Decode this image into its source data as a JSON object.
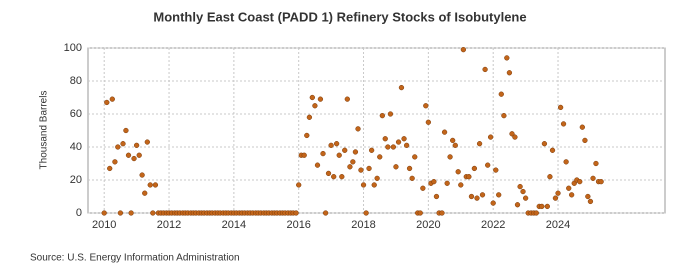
{
  "chart_data": {
    "type": "scatter",
    "title": "Monthly East Coast (PADD 1) Refinery Stocks of Isobutylene",
    "y_label": "Thousand Barrels",
    "source": "Source: U.S. Energy Information Administration",
    "color": "#c2651a",
    "grid": true,
    "xlim": [
      2009.5,
      2027.3
    ],
    "xticks": [
      2010,
      2012,
      2014,
      2016,
      2018,
      2020,
      2022,
      2024
    ],
    "ylim": [
      0,
      100
    ],
    "yticks": [
      0,
      20,
      40,
      60,
      80,
      100
    ],
    "x": [
      2010.0,
      2010.08,
      2010.17,
      2010.25,
      2010.33,
      2010.42,
      2010.5,
      2010.58,
      2010.67,
      2010.75,
      2010.83,
      2010.92,
      2011.0,
      2011.08,
      2011.17,
      2011.25,
      2011.33,
      2011.42,
      2011.5,
      2011.58,
      2011.67,
      2011.75,
      2011.83,
      2011.92,
      2012.0,
      2012.08,
      2012.17,
      2012.25,
      2012.33,
      2012.42,
      2012.5,
      2012.58,
      2012.67,
      2012.75,
      2012.83,
      2012.92,
      2013.0,
      2013.08,
      2013.17,
      2013.25,
      2013.33,
      2013.42,
      2013.5,
      2013.58,
      2013.67,
      2013.75,
      2013.83,
      2013.92,
      2014.0,
      2014.08,
      2014.17,
      2014.25,
      2014.33,
      2014.42,
      2014.5,
      2014.58,
      2014.67,
      2014.75,
      2014.83,
      2014.92,
      2015.0,
      2015.08,
      2015.17,
      2015.25,
      2015.33,
      2015.42,
      2015.5,
      2015.58,
      2015.67,
      2015.75,
      2015.83,
      2015.92,
      2016.0,
      2016.08,
      2016.17,
      2016.25,
      2016.33,
      2016.42,
      2016.5,
      2016.58,
      2016.67,
      2016.75,
      2016.83,
      2016.92,
      2017.0,
      2017.08,
      2017.17,
      2017.25,
      2017.33,
      2017.42,
      2017.5,
      2017.58,
      2017.67,
      2017.75,
      2017.83,
      2017.92,
      2018.0,
      2018.08,
      2018.17,
      2018.25,
      2018.33,
      2018.42,
      2018.5,
      2018.58,
      2018.67,
      2018.75,
      2018.83,
      2018.92,
      2019.0,
      2019.08,
      2019.17,
      2019.25,
      2019.33,
      2019.42,
      2019.5,
      2019.58,
      2019.67,
      2019.75,
      2019.83,
      2019.92,
      2020.0,
      2020.08,
      2020.17,
      2020.25,
      2020.33,
      2020.42,
      2020.5,
      2020.58,
      2020.67,
      2020.75,
      2020.83,
      2020.92,
      2021.0,
      2021.08,
      2021.17,
      2021.25,
      2021.33,
      2021.42,
      2021.5,
      2021.58,
      2021.67,
      2021.75,
      2021.83,
      2021.92,
      2022.0,
      2022.08,
      2022.17,
      2022.25,
      2022.33,
      2022.42,
      2022.5,
      2022.58,
      2022.67,
      2022.75,
      2022.83,
      2022.92,
      2023.0,
      2023.08,
      2023.17,
      2023.25,
      2023.33,
      2023.42,
      2023.5,
      2023.58,
      2023.67,
      2023.75,
      2023.83,
      2023.92,
      2024.0,
      2024.08,
      2024.17,
      2024.25,
      2024.33,
      2024.42,
      2024.5,
      2024.58,
      2024.67,
      2024.75,
      2024.83,
      2024.92,
      2025.0,
      2025.08,
      2025.17,
      2025.25,
      2025.33
    ],
    "values": [
      0,
      67,
      27,
      69,
      31,
      40,
      0,
      42,
      50,
      35,
      0,
      33,
      41,
      35,
      23,
      12,
      43,
      17,
      0,
      17,
      0,
      0,
      0,
      0,
      0,
      0,
      0,
      0,
      0,
      0,
      0,
      0,
      0,
      0,
      0,
      0,
      0,
      0,
      0,
      0,
      0,
      0,
      0,
      0,
      0,
      0,
      0,
      0,
      0,
      0,
      0,
      0,
      0,
      0,
      0,
      0,
      0,
      0,
      0,
      0,
      0,
      0,
      0,
      0,
      0,
      0,
      0,
      0,
      0,
      0,
      0,
      0,
      17,
      35,
      35,
      47,
      58,
      70,
      65,
      29,
      69,
      36,
      0,
      24,
      41,
      22,
      42,
      35,
      22,
      38,
      69,
      28,
      31,
      37,
      51,
      26,
      17,
      0,
      27,
      38,
      17,
      21,
      34,
      59,
      45,
      40,
      60,
      40,
      28,
      43,
      76,
      45,
      41,
      27,
      21,
      34,
      0,
      0,
      15,
      65,
      55,
      18,
      19,
      10,
      0,
      0,
      49,
      18,
      34,
      44,
      41,
      25,
      17,
      99,
      22,
      22,
      10,
      27,
      9,
      42,
      11,
      87,
      29,
      46,
      6,
      26,
      11,
      72,
      59,
      94,
      85,
      48,
      46,
      5,
      16,
      13,
      9,
      0,
      0,
      0,
      0,
      4,
      4,
      42,
      4,
      22,
      38,
      9,
      12,
      64,
      54,
      31,
      15,
      11,
      18,
      20,
      19,
      52,
      44,
      10,
      7,
      21,
      30,
      19,
      19
    ]
  }
}
